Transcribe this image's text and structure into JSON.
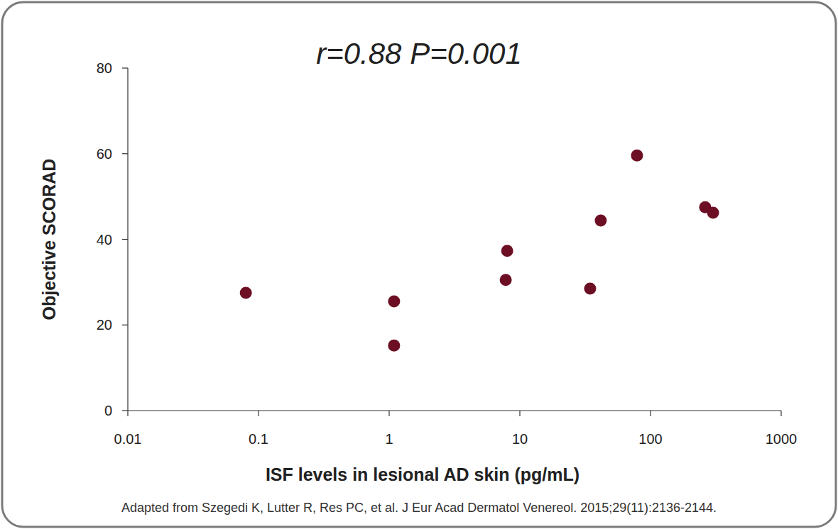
{
  "chart_data": {
    "type": "scatter",
    "title": "r=0.88  P=0.001",
    "x_label": "ISF levels in lesional AD skin (pg/mL)",
    "y_label": "Objective SCORAD",
    "annotations": [
      "Adapted from Szegedi K, Lutter R, Res PC, et al. J Eur Acad Dermatol Venereol. 2015;29(11):2136-2144."
    ],
    "x": [
      0.08,
      1.09,
      1.09,
      8.0,
      7.8,
      34.5,
      41.6,
      78.8,
      262,
      301
    ],
    "values": [
      27.5,
      25.5,
      15.2,
      37.3,
      30.5,
      28.5,
      44.4,
      59.6,
      47.5,
      46.2
    ],
    "color": "#6d0f24",
    "marker": "circle",
    "xlim": [
      0.01,
      1000
    ],
    "ylim": [
      0,
      80
    ],
    "xticks": [
      0.01,
      0.1,
      1,
      10,
      100,
      1000
    ],
    "yticks": [
      0,
      20,
      40,
      60,
      80
    ],
    "log": "x",
    "grid": false
  }
}
